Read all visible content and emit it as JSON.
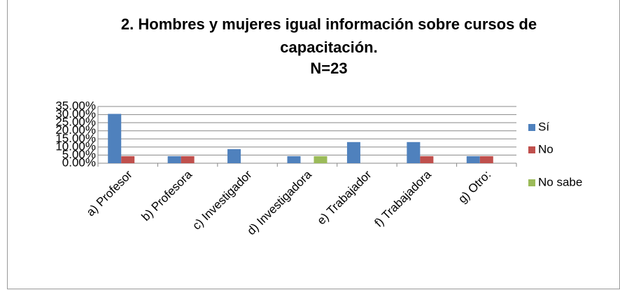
{
  "chart_data": {
    "type": "bar",
    "title": "2. Hombres y mujeres  igual información sobre cursos de capacitación.",
    "subtitle": "N=23",
    "categories": [
      "a) Profesor",
      "b) Profesora",
      "c) Investigador",
      "d) Investigadora",
      "e) Trabajador",
      "f) Trabajadora",
      "g) Otro:"
    ],
    "series": [
      {
        "name": "Sí",
        "color": "#4f81bd",
        "values": [
          30.43,
          4.35,
          8.7,
          4.35,
          13.04,
          13.04,
          4.35
        ]
      },
      {
        "name": "No",
        "color": "#c0504d",
        "values": [
          4.35,
          4.35,
          0,
          0,
          0,
          4.35,
          4.35
        ]
      },
      {
        "name": "No sabe",
        "color": "#9bbb59",
        "values": [
          0,
          0,
          0,
          4.35,
          0,
          0,
          0
        ]
      }
    ],
    "ylim": [
      0,
      35
    ],
    "yticks": [
      {
        "value": 0,
        "label": "0.00%"
      },
      {
        "value": 5,
        "label": "5.00%"
      },
      {
        "value": 10,
        "label": "10.00%"
      },
      {
        "value": 15,
        "label": "15.00%"
      },
      {
        "value": 20,
        "label": "20.00%"
      },
      {
        "value": 25,
        "label": "25.00%"
      },
      {
        "value": 30,
        "label": "30.00%"
      },
      {
        "value": 35,
        "label": "35.00%"
      }
    ],
    "grid": true,
    "legend": "right"
  }
}
